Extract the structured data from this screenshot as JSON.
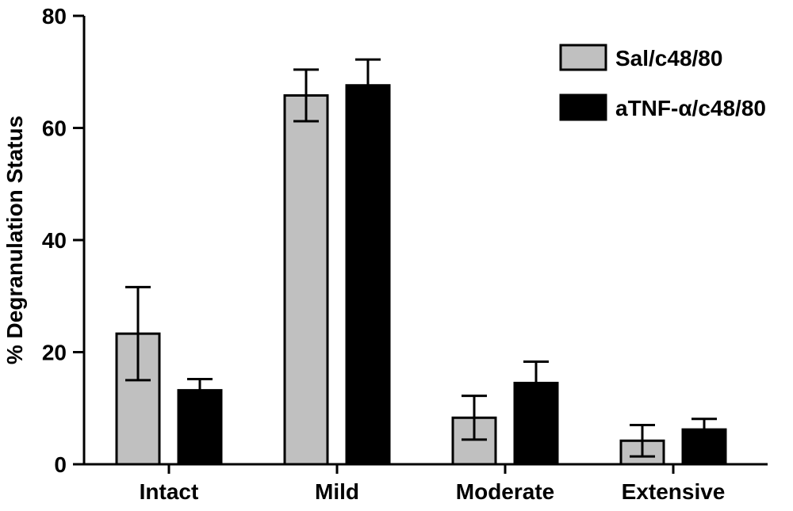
{
  "chart_data": {
    "type": "bar",
    "categories": [
      "Intact",
      "Mild",
      "Moderate",
      "Extensive"
    ],
    "ylabel": "% Degranulation Status",
    "ylim": [
      0,
      80
    ],
    "yticks": [
      0,
      20,
      40,
      60,
      80
    ],
    "legend_position": "top-right",
    "grid": false,
    "series": [
      {
        "name": "Sal/c48/80",
        "color": "#c0c0c0",
        "values": [
          23.3,
          65.8,
          8.3,
          4.2
        ],
        "error": [
          8.3,
          4.6,
          3.9,
          2.8
        ]
      },
      {
        "name": "aTNF-α/c48/80",
        "color": "#000000",
        "values": [
          13.2,
          67.6,
          14.5,
          6.2
        ],
        "error": [
          2.0,
          4.6,
          3.8,
          1.9
        ]
      }
    ]
  }
}
